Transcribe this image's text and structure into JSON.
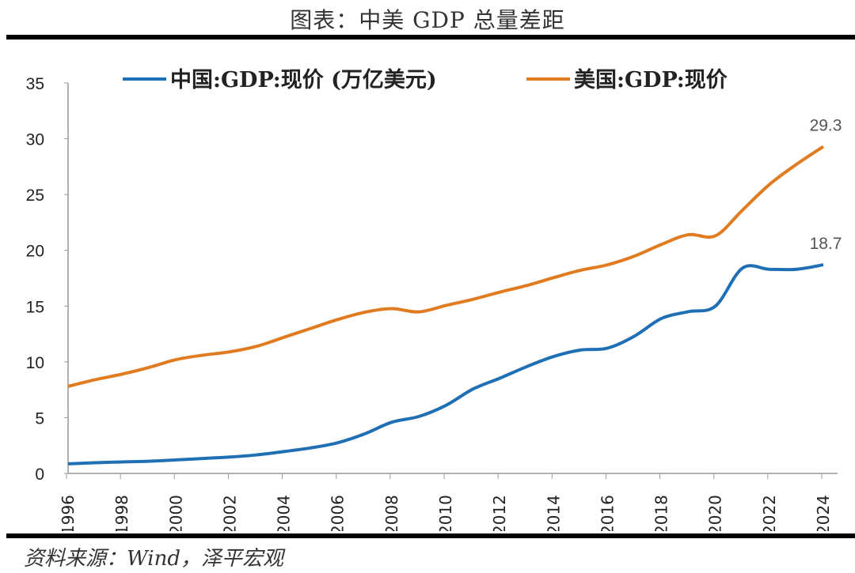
{
  "title": "图表：中美 GDP 总量差距",
  "source": "资料来源：Wind，泽平宏观",
  "chart_data": {
    "type": "line",
    "title": "图表：中美 GDP 总量差距",
    "xlabel": "",
    "ylabel": "",
    "ylim": [
      0,
      35
    ],
    "yticks": [
      0,
      5,
      10,
      15,
      20,
      25,
      30,
      35
    ],
    "xticks": [
      1996,
      1998,
      2000,
      2002,
      2004,
      2006,
      2008,
      2010,
      2012,
      2014,
      2016,
      2018,
      2020,
      2022,
      2024
    ],
    "x": [
      1996,
      1997,
      1998,
      1999,
      2000,
      2001,
      2002,
      2003,
      2004,
      2005,
      2006,
      2007,
      2008,
      2009,
      2010,
      2011,
      2012,
      2013,
      2014,
      2015,
      2016,
      2017,
      2018,
      2019,
      2020,
      2021,
      2022,
      2023,
      2024
    ],
    "legend_position": "top",
    "series": [
      {
        "name": "中国:GDP:现价 (万亿美元)",
        "color": "#1f6fb5",
        "values": [
          0.86,
          0.96,
          1.03,
          1.09,
          1.21,
          1.34,
          1.47,
          1.66,
          1.96,
          2.29,
          2.75,
          3.55,
          4.59,
          5.1,
          6.09,
          7.55,
          8.53,
          9.57,
          10.48,
          11.06,
          11.23,
          12.31,
          13.89,
          14.5,
          15.0,
          18.4,
          18.3,
          18.3,
          18.7
        ],
        "end_label": "18.7"
      },
      {
        "name": "美国:GDP:现价",
        "color": "#e07b20",
        "values": [
          7.8,
          8.4,
          8.9,
          9.5,
          10.2,
          10.6,
          10.9,
          11.4,
          12.2,
          13.0,
          13.8,
          14.45,
          14.77,
          14.48,
          15.05,
          15.6,
          16.25,
          16.84,
          17.55,
          18.21,
          18.7,
          19.48,
          20.53,
          21.4,
          21.3,
          23.6,
          25.9,
          27.7,
          29.3
        ],
        "end_label": "29.3"
      }
    ]
  }
}
